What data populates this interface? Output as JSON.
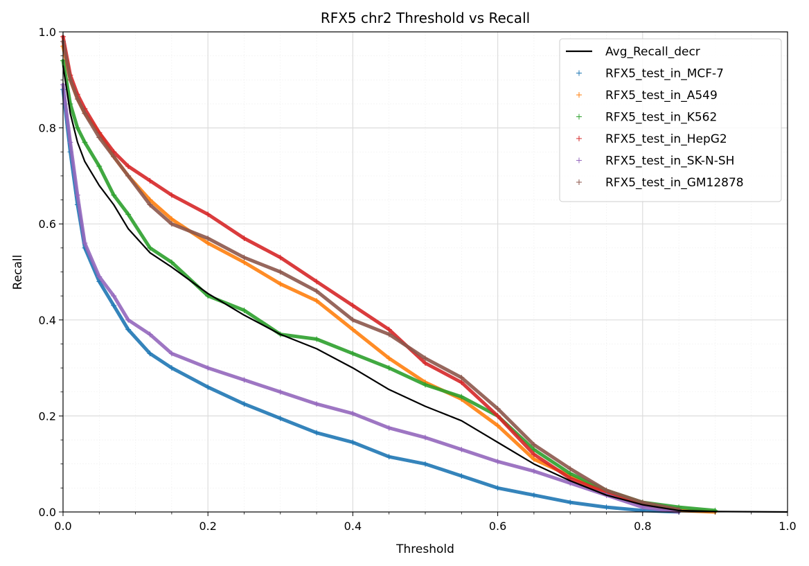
{
  "chart_data": {
    "type": "line",
    "title": "RFX5 chr2 Threshold vs Recall",
    "xlabel": "Threshold",
    "ylabel": "Recall",
    "xlim": [
      0,
      1
    ],
    "ylim": [
      0,
      1
    ],
    "xticks": [
      "0.0",
      "0.2",
      "0.4",
      "0.6",
      "0.8",
      "1.0"
    ],
    "yticks": [
      "0.0",
      "0.2",
      "0.4",
      "0.6",
      "0.8",
      "1.0"
    ],
    "grid": true,
    "minor_grid": true,
    "legend_position": "top-right",
    "series": [
      {
        "name": "Avg_Recall_decr",
        "style": "line",
        "color": "#000000",
        "points": [
          [
            0,
            0.93
          ],
          [
            0.01,
            0.83
          ],
          [
            0.02,
            0.77
          ],
          [
            0.03,
            0.73
          ],
          [
            0.05,
            0.68
          ],
          [
            0.07,
            0.64
          ],
          [
            0.09,
            0.59
          ],
          [
            0.12,
            0.54
          ],
          [
            0.15,
            0.51
          ],
          [
            0.2,
            0.455
          ],
          [
            0.25,
            0.41
          ],
          [
            0.3,
            0.37
          ],
          [
            0.35,
            0.34
          ],
          [
            0.4,
            0.3
          ],
          [
            0.45,
            0.255
          ],
          [
            0.5,
            0.22
          ],
          [
            0.55,
            0.19
          ],
          [
            0.6,
            0.145
          ],
          [
            0.65,
            0.1
          ],
          [
            0.7,
            0.065
          ],
          [
            0.75,
            0.035
          ],
          [
            0.8,
            0.015
          ],
          [
            0.85,
            0.003
          ],
          [
            0.9,
            0.001
          ],
          [
            1.0,
            0
          ]
        ]
      },
      {
        "name": "RFX5_test_in_MCF-7",
        "style": "marker",
        "color": "#1f77b4",
        "points": [
          [
            0,
            0.88
          ],
          [
            0.01,
            0.75
          ],
          [
            0.02,
            0.64
          ],
          [
            0.03,
            0.55
          ],
          [
            0.05,
            0.48
          ],
          [
            0.07,
            0.43
          ],
          [
            0.09,
            0.38
          ],
          [
            0.12,
            0.33
          ],
          [
            0.15,
            0.3
          ],
          [
            0.2,
            0.26
          ],
          [
            0.25,
            0.225
          ],
          [
            0.3,
            0.195
          ],
          [
            0.35,
            0.165
          ],
          [
            0.4,
            0.145
          ],
          [
            0.45,
            0.115
          ],
          [
            0.5,
            0.1
          ],
          [
            0.55,
            0.075
          ],
          [
            0.6,
            0.05
          ],
          [
            0.65,
            0.035
          ],
          [
            0.7,
            0.02
          ],
          [
            0.75,
            0.01
          ],
          [
            0.8,
            0.003
          ],
          [
            0.85,
            0
          ]
        ]
      },
      {
        "name": "RFX5_test_in_A549",
        "style": "marker",
        "color": "#ff7f0e",
        "points": [
          [
            0,
            0.97
          ],
          [
            0.01,
            0.9
          ],
          [
            0.02,
            0.86
          ],
          [
            0.03,
            0.83
          ],
          [
            0.05,
            0.79
          ],
          [
            0.07,
            0.74
          ],
          [
            0.09,
            0.7
          ],
          [
            0.12,
            0.65
          ],
          [
            0.15,
            0.61
          ],
          [
            0.2,
            0.56
          ],
          [
            0.25,
            0.52
          ],
          [
            0.3,
            0.475
          ],
          [
            0.35,
            0.44
          ],
          [
            0.4,
            0.38
          ],
          [
            0.45,
            0.32
          ],
          [
            0.5,
            0.27
          ],
          [
            0.55,
            0.235
          ],
          [
            0.6,
            0.18
          ],
          [
            0.65,
            0.11
          ],
          [
            0.7,
            0.075
          ],
          [
            0.75,
            0.04
          ],
          [
            0.8,
            0.015
          ],
          [
            0.85,
            0.003
          ],
          [
            0.9,
            0
          ]
        ]
      },
      {
        "name": "RFX5_test_in_K562",
        "style": "marker",
        "color": "#2ca02c",
        "points": [
          [
            0,
            0.94
          ],
          [
            0.01,
            0.85
          ],
          [
            0.02,
            0.8
          ],
          [
            0.03,
            0.77
          ],
          [
            0.05,
            0.72
          ],
          [
            0.07,
            0.66
          ],
          [
            0.09,
            0.62
          ],
          [
            0.12,
            0.55
          ],
          [
            0.15,
            0.52
          ],
          [
            0.2,
            0.45
          ],
          [
            0.25,
            0.42
          ],
          [
            0.3,
            0.37
          ],
          [
            0.35,
            0.36
          ],
          [
            0.4,
            0.33
          ],
          [
            0.45,
            0.3
          ],
          [
            0.5,
            0.265
          ],
          [
            0.55,
            0.24
          ],
          [
            0.6,
            0.2
          ],
          [
            0.65,
            0.13
          ],
          [
            0.7,
            0.08
          ],
          [
            0.75,
            0.045
          ],
          [
            0.8,
            0.02
          ],
          [
            0.85,
            0.01
          ],
          [
            0.9,
            0.003
          ]
        ]
      },
      {
        "name": "RFX5_test_in_HepG2",
        "style": "marker",
        "color": "#d62728",
        "points": [
          [
            0,
            0.99
          ],
          [
            0.01,
            0.91
          ],
          [
            0.02,
            0.87
          ],
          [
            0.03,
            0.84
          ],
          [
            0.05,
            0.79
          ],
          [
            0.07,
            0.75
          ],
          [
            0.09,
            0.72
          ],
          [
            0.12,
            0.69
          ],
          [
            0.15,
            0.66
          ],
          [
            0.2,
            0.62
          ],
          [
            0.25,
            0.57
          ],
          [
            0.3,
            0.53
          ],
          [
            0.35,
            0.48
          ],
          [
            0.4,
            0.43
          ],
          [
            0.45,
            0.38
          ],
          [
            0.5,
            0.31
          ],
          [
            0.55,
            0.27
          ],
          [
            0.6,
            0.2
          ],
          [
            0.65,
            0.12
          ],
          [
            0.7,
            0.07
          ],
          [
            0.75,
            0.04
          ],
          [
            0.8,
            0.015
          ],
          [
            0.85,
            0.003
          ]
        ]
      },
      {
        "name": "RFX5_test_in_SK-N-SH",
        "style": "marker",
        "color": "#9467bd",
        "points": [
          [
            0,
            0.89
          ],
          [
            0.01,
            0.77
          ],
          [
            0.02,
            0.66
          ],
          [
            0.03,
            0.56
          ],
          [
            0.05,
            0.49
          ],
          [
            0.07,
            0.45
          ],
          [
            0.09,
            0.4
          ],
          [
            0.12,
            0.37
          ],
          [
            0.15,
            0.33
          ],
          [
            0.2,
            0.3
          ],
          [
            0.25,
            0.275
          ],
          [
            0.3,
            0.25
          ],
          [
            0.35,
            0.225
          ],
          [
            0.4,
            0.205
          ],
          [
            0.45,
            0.175
          ],
          [
            0.5,
            0.155
          ],
          [
            0.55,
            0.13
          ],
          [
            0.6,
            0.105
          ],
          [
            0.65,
            0.085
          ],
          [
            0.7,
            0.06
          ],
          [
            0.75,
            0.035
          ],
          [
            0.8,
            0.01
          ],
          [
            0.85,
            0
          ]
        ]
      },
      {
        "name": "RFX5_test_in_GM12878",
        "style": "marker",
        "color": "#8c564b",
        "points": [
          [
            0,
            0.98
          ],
          [
            0.01,
            0.9
          ],
          [
            0.02,
            0.86
          ],
          [
            0.03,
            0.83
          ],
          [
            0.05,
            0.78
          ],
          [
            0.07,
            0.74
          ],
          [
            0.09,
            0.7
          ],
          [
            0.12,
            0.64
          ],
          [
            0.15,
            0.6
          ],
          [
            0.2,
            0.57
          ],
          [
            0.25,
            0.53
          ],
          [
            0.3,
            0.5
          ],
          [
            0.35,
            0.46
          ],
          [
            0.4,
            0.4
          ],
          [
            0.45,
            0.37
          ],
          [
            0.5,
            0.32
          ],
          [
            0.55,
            0.28
          ],
          [
            0.6,
            0.215
          ],
          [
            0.65,
            0.14
          ],
          [
            0.7,
            0.09
          ],
          [
            0.75,
            0.045
          ],
          [
            0.8,
            0.02
          ],
          [
            0.85,
            0.005
          ]
        ]
      }
    ]
  }
}
